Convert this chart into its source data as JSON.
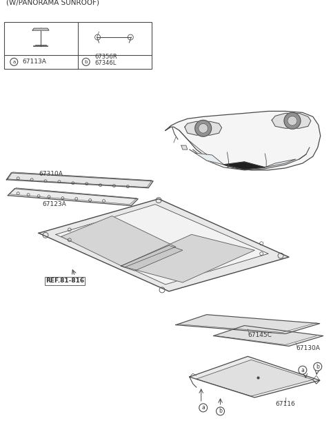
{
  "title": "(W/PANORAMA SUNROOF)",
  "bg_color": "#ffffff",
  "line_color": "#4a4a4a",
  "text_color": "#333333",
  "parts": {
    "main_panel_label": "REF.81-816",
    "part_67116": "67116",
    "part_67130A": "67130A",
    "part_67145C": "67145C",
    "part_67123A": "67123A",
    "part_67310A": "67310A",
    "part_67113A": "67113A",
    "part_67346L": "67346L",
    "part_67356R": "67356R"
  },
  "callout_a": "a",
  "callout_b": "b",
  "font_size_title": 7.5,
  "font_size_label": 6.5,
  "font_size_ref": 6.5
}
